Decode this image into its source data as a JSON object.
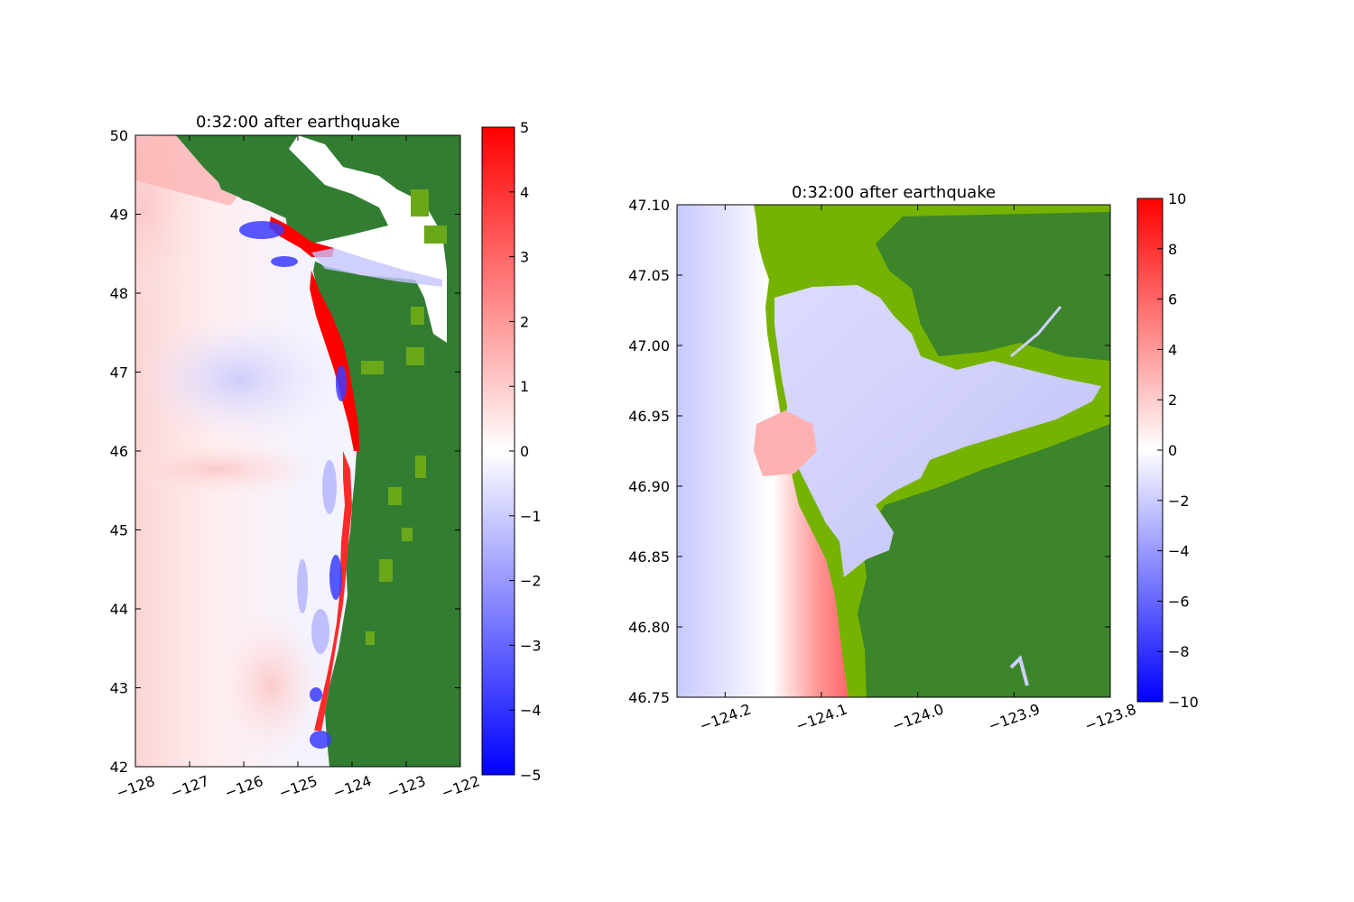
{
  "chart_data": [
    {
      "type": "heatmap",
      "title": "0:32:00 after earthquake",
      "xlabel": "",
      "ylabel": "",
      "xlim": [
        -128,
        -122
      ],
      "ylim": [
        42,
        50
      ],
      "xticks": [
        -128,
        -127,
        -126,
        -125,
        -124,
        -123,
        -122
      ],
      "xtick_labels": [
        "−128",
        "−127",
        "−126",
        "−125",
        "−124",
        "−123",
        "−122"
      ],
      "yticks": [
        42,
        43,
        44,
        45,
        46,
        47,
        48,
        49,
        50
      ],
      "ytick_labels": [
        "42",
        "43",
        "44",
        "45",
        "46",
        "47",
        "48",
        "49",
        "50"
      ],
      "colorbar": {
        "range": [
          -5,
          5
        ],
        "ticks": [
          -5,
          -4,
          -3,
          -2,
          -1,
          0,
          1,
          2,
          3,
          4,
          5
        ],
        "tick_labels": [
          "−5",
          "−4",
          "−3",
          "−2",
          "−1",
          "0",
          "1",
          "2",
          "3",
          "4",
          "5"
        ],
        "colormap": [
          "#0000ff",
          "#ffffff",
          "#ff0000"
        ]
      },
      "land_colors": [
        "#327d32",
        "#6aa81a"
      ],
      "grid": false
    },
    {
      "type": "heatmap",
      "title": "0:32:00 after earthquake",
      "xlabel": "",
      "ylabel": "",
      "xlim": [
        -124.25,
        -123.8
      ],
      "ylim": [
        46.75,
        47.1
      ],
      "xticks": [
        -124.2,
        -124.1,
        -124.0,
        -123.9,
        -123.8
      ],
      "xtick_labels": [
        "−124.2",
        "−124.1",
        "−124.0",
        "−123.9",
        "−123.8"
      ],
      "yticks": [
        46.75,
        46.8,
        46.85,
        46.9,
        46.95,
        47.0,
        47.05,
        47.1
      ],
      "ytick_labels": [
        "46.75",
        "46.80",
        "46.85",
        "46.90",
        "46.95",
        "47.00",
        "47.05",
        "47.10"
      ],
      "colorbar": {
        "range": [
          -10,
          10
        ],
        "ticks": [
          -10,
          -8,
          -6,
          -4,
          -2,
          0,
          2,
          4,
          6,
          8,
          10
        ],
        "tick_labels": [
          "−10",
          "−8",
          "−6",
          "−4",
          "−2",
          "0",
          "2",
          "4",
          "6",
          "8",
          "10"
        ],
        "colormap": [
          "#0000ff",
          "#ffffff",
          "#ff0000"
        ]
      },
      "land_colors": [
        "#327d32",
        "#76b300"
      ],
      "grid": false
    }
  ]
}
